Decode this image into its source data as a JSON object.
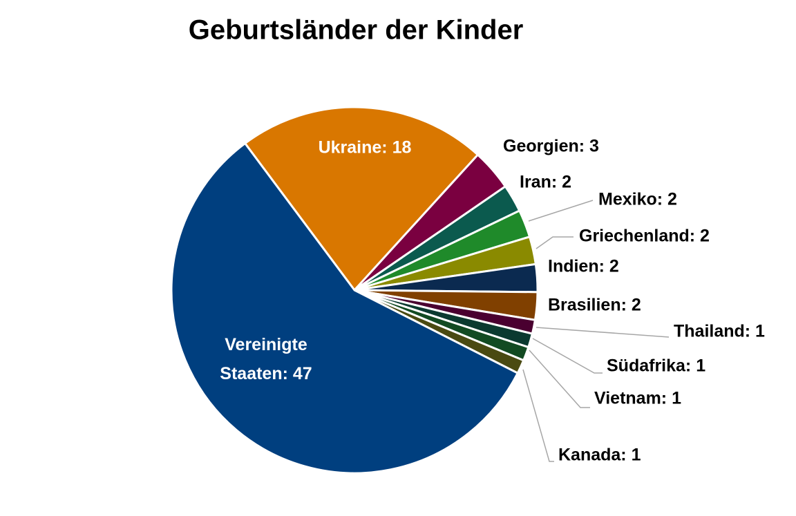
{
  "chart_data": {
    "type": "pie",
    "title": "Geburtsländer der Kinder",
    "categories": [
      "Ukraine",
      "Georgien",
      "Iran",
      "Mexiko",
      "Griechenland",
      "Indien",
      "Brasilien",
      "Thailand",
      "Südafrika",
      "Vietnam",
      "Kanada",
      "Vereinigte Staaten"
    ],
    "values": [
      18,
      3,
      2,
      2,
      2,
      2,
      2,
      1,
      1,
      1,
      1,
      47
    ],
    "value_labels": [
      "Ukraine: 18",
      "Georgien: 3",
      "Iran: 2",
      "Mexiko: 2",
      "Griechenland: 2",
      "Indien: 2",
      "Brasilien: 2",
      "Thailand: 1",
      "Südafrika: 1",
      "Vietnam: 1",
      "Kanada: 1",
      "Vereinigte Staaten: 47"
    ],
    "colors": [
      "#d97700",
      "#7a0040",
      "#0b5a4e",
      "#1f8a2a",
      "#8a8a00",
      "#0b2a50",
      "#804000",
      "#4a0030",
      "#0b3a30",
      "#124a22",
      "#4a4a12",
      "#003f7f"
    ]
  }
}
